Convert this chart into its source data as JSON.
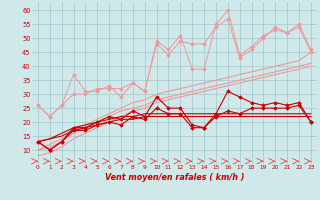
{
  "xlabel": "Vent moyen/en rafales ( km/h )",
  "background_color": "#cfe8ea",
  "grid_color": "#a0c8cc",
  "x": [
    0,
    1,
    2,
    3,
    4,
    5,
    6,
    7,
    8,
    9,
    10,
    11,
    12,
    13,
    14,
    15,
    16,
    17,
    18,
    19,
    20,
    21,
    22,
    23
  ],
  "line_dark1": [
    13,
    10,
    13,
    18,
    18,
    20,
    22,
    21,
    24,
    22,
    29,
    25,
    25,
    19,
    18,
    23,
    31,
    29,
    27,
    26,
    27,
    26,
    27,
    20
  ],
  "line_dark2": [
    13,
    10,
    13,
    17,
    17,
    19,
    20,
    19,
    22,
    21,
    25,
    23,
    23,
    18,
    18,
    22,
    24,
    23,
    25,
    25,
    25,
    25,
    26,
    20
  ],
  "line_dark_straight1": [
    13,
    14,
    15,
    17,
    18,
    19,
    20,
    21,
    21,
    22,
    22,
    22,
    22,
    22,
    22,
    22,
    22,
    22,
    22,
    22,
    22,
    22,
    22,
    22
  ],
  "line_dark_straight2": [
    13,
    14,
    16,
    18,
    19,
    20,
    21,
    22,
    22,
    23,
    23,
    23,
    23,
    23,
    23,
    23,
    23,
    23,
    23,
    23,
    23,
    23,
    23,
    23
  ],
  "line_light1": [
    26,
    22,
    26,
    37,
    31,
    31,
    33,
    29,
    34,
    31,
    49,
    46,
    51,
    39,
    39,
    55,
    60,
    44,
    47,
    51,
    53,
    52,
    55,
    46
  ],
  "line_light2": [
    26,
    22,
    26,
    30,
    30,
    32,
    32,
    32,
    34,
    31,
    48,
    44,
    49,
    48,
    48,
    54,
    57,
    43,
    46,
    50,
    54,
    52,
    54,
    45
  ],
  "line_light_straight1": [
    10,
    11,
    13,
    16,
    18,
    20,
    22,
    24,
    25,
    26,
    28,
    29,
    30,
    31,
    32,
    33,
    34,
    35,
    36,
    37,
    38,
    39,
    40,
    41
  ],
  "line_light_straight2": [
    10,
    12,
    14,
    17,
    19,
    21,
    23,
    25,
    27,
    28,
    30,
    31,
    32,
    33,
    34,
    35,
    36,
    37,
    38,
    39,
    40,
    41,
    42,
    45
  ],
  "line_light_straight3": [
    8,
    9,
    11,
    14,
    16,
    18,
    20,
    22,
    24,
    25,
    27,
    28,
    29,
    30,
    31,
    32,
    33,
    34,
    35,
    36,
    37,
    38,
    39,
    40
  ],
  "line_bottom": [
    6,
    6,
    6,
    6,
    6,
    6,
    6,
    6,
    6,
    6,
    6,
    6,
    6,
    6,
    6,
    6,
    6,
    6,
    6,
    6,
    6,
    6,
    6,
    6
  ],
  "color_dark_red": "#cc0000",
  "color_medium_red": "#ee4444",
  "color_light_red": "#ee9999",
  "color_vlight_red": "#ffbbbb",
  "ylim_min": 5,
  "ylim_max": 63,
  "yticks": [
    10,
    15,
    20,
    25,
    30,
    35,
    40,
    45,
    50,
    55,
    60
  ]
}
